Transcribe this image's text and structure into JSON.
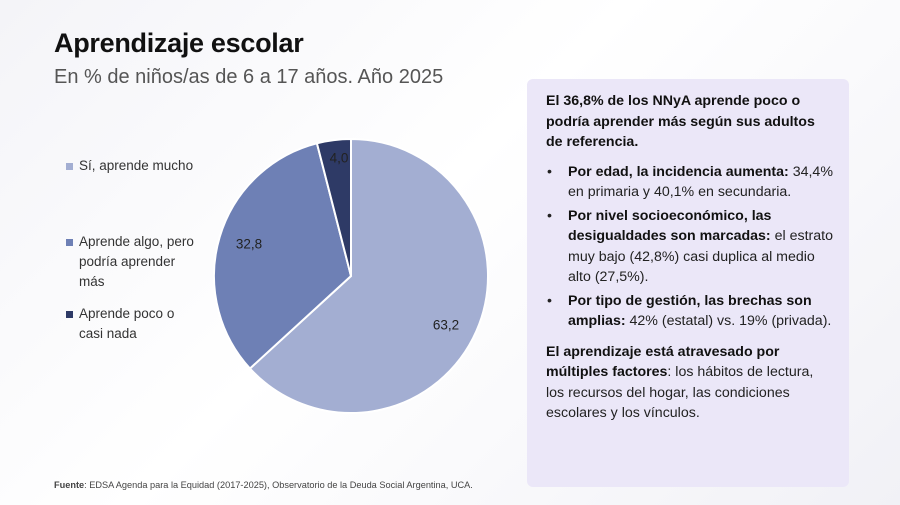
{
  "header": {
    "title": "Aprendizaje escolar",
    "subtitle": "En % de niños/as de 6 a 17 años. Año 2025"
  },
  "chart_data": {
    "type": "pie",
    "title": "Aprendizaje escolar",
    "subtitle": "En % de niños/as de 6 a 17 años. Año 2025",
    "categories": [
      "Sí, aprende mucho",
      "Aprende algo, pero podría aprender más",
      "Aprende poco o casi nada"
    ],
    "values": [
      63.2,
      32.8,
      4.0
    ],
    "value_labels": [
      "63,2",
      "32,8",
      "4,0"
    ],
    "colors": [
      "#a3aed2",
      "#6e80b5",
      "#2e3a66"
    ],
    "legend": [
      {
        "label": "Sí, aprende mucho",
        "color": "#a3aed2"
      },
      {
        "label": "Aprende algo, pero podría aprender más",
        "color": "#6e80b5"
      },
      {
        "label": "Aprende poco o casi nada",
        "color": "#2e3a66"
      }
    ],
    "legend_position": "left",
    "start_angle_deg": 0,
    "direction": "clockwise"
  },
  "panel": {
    "intro": "El 36,8% de los NNyA aprende poco o podría aprender más según sus adultos de referencia.",
    "bullet_symbol": "•",
    "bullets": [
      {
        "bold": "Por edad, la incidencia aumenta:",
        "text": " 34,4% en primaria y 40,1% en secundaria."
      },
      {
        "bold": "Por nivel socioeconómico, las desigualdades son marcadas:",
        "text": " el estrato muy bajo (42,8%) casi duplica al medio alto (27,5%)."
      },
      {
        "bold": "Por tipo de gestión, las brechas son amplias:",
        "text": " 42% (estatal) vs. 19% (privada)."
      }
    ],
    "closing_bold": "El aprendizaje está atravesado por múltiples factores",
    "closing_text": ": los hábitos de lectura, los recursos del hogar, las condiciones escolares y los vínculos."
  },
  "footer": {
    "source_label": "Fuente",
    "source_text": ": EDSA Agenda para la Equidad (2017-2025), Observatorio de la Deuda Social Argentina, UCA."
  }
}
